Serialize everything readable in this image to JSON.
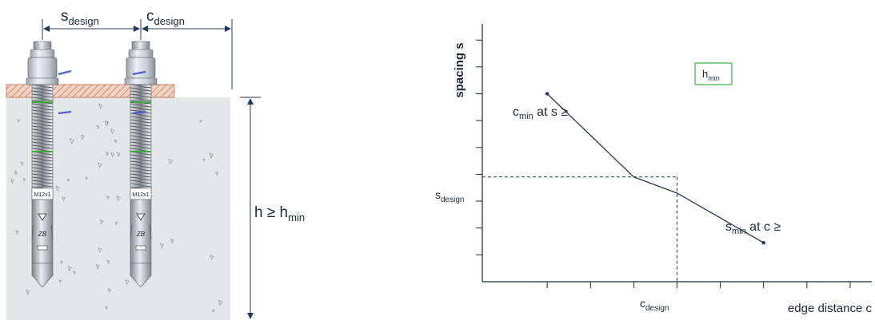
{
  "left_figure": {
    "s_label": {
      "base": "s",
      "sub": "design"
    },
    "c_label": {
      "base": "c",
      "sub": "design"
    },
    "h_label": {
      "base": "h ≥ h",
      "sub": "min"
    },
    "anchor_markings": {
      "size": "M12x1",
      "logo": "ZB"
    }
  },
  "right_figure": {
    "y_axis_label": "spacing s",
    "x_axis_label": "edge distance c",
    "legend_box": {
      "base": "h",
      "sub": "min"
    },
    "annotation_top": {
      "base": "c",
      "sub": "min",
      "tail": " at s ≥"
    },
    "annotation_bottom": {
      "base": "s",
      "sub": "min",
      "tail": " at c ≥"
    },
    "s_design_label": {
      "base": "s",
      "sub": "design"
    },
    "c_design_label": {
      "base": "c",
      "sub": "design"
    }
  },
  "chart_data": {
    "type": "line",
    "xlabel": "edge distance c",
    "ylabel": "spacing s",
    "x_ticks": [
      1,
      2,
      3,
      4,
      5,
      6,
      7,
      8
    ],
    "y_ticks": [
      1,
      2,
      3,
      4,
      5,
      6,
      7,
      8,
      9
    ],
    "series": [
      {
        "points": [
          [
            1,
            7
          ],
          [
            3,
            3.9
          ],
          [
            4,
            3.3
          ],
          [
            6,
            1.45
          ]
        ]
      }
    ],
    "design_point": {
      "x": 4,
      "y": 3.9
    },
    "xlim": [
      -0.5,
      8.5
    ],
    "ylim": [
      0,
      9.6
    ],
    "colors": {
      "axis": "#1a2a3a",
      "line": "#1f3a5f",
      "box": "#4caf50"
    }
  }
}
